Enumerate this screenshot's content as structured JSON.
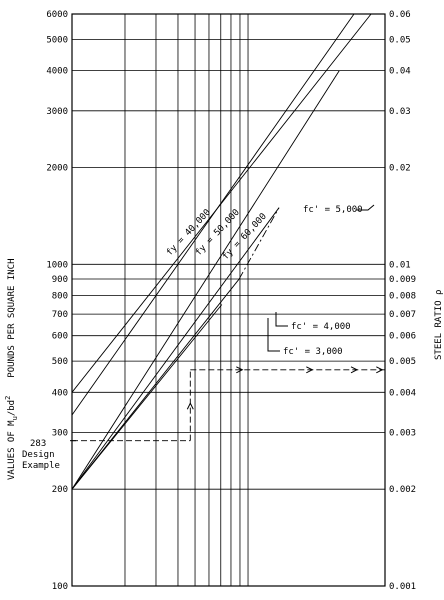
{
  "chart_data": {
    "type": "line",
    "title": "",
    "left_axis": {
      "label_prefix": "VALUES OF M",
      "label_sub": "u",
      "label_mid": "/bd",
      "label_sup": "2",
      "label_units": "POUNDS PER SQUARE INCH",
      "scale": "log",
      "range": [
        100,
        6000
      ],
      "ticks": [
        {
          "value": 100,
          "label": "100"
        },
        {
          "value": 200,
          "label": "200"
        },
        {
          "value": 300,
          "label": "300"
        },
        {
          "value": 400,
          "label": "400"
        },
        {
          "value": 500,
          "label": "500"
        },
        {
          "value": 600,
          "label": "600"
        },
        {
          "value": 700,
          "label": "700"
        },
        {
          "value": 800,
          "label": "800"
        },
        {
          "value": 900,
          "label": "900"
        },
        {
          "value": 1000,
          "label": "1000"
        },
        {
          "value": 2000,
          "label": "2000"
        },
        {
          "value": 3000,
          "label": "3000"
        },
        {
          "value": 4000,
          "label": "4000"
        },
        {
          "value": 5000,
          "label": "5000"
        },
        {
          "value": 6000,
          "label": "6000"
        }
      ]
    },
    "right_axis": {
      "label": "STEEL RATIO ρ",
      "scale": "log",
      "range": [
        0.001,
        0.06
      ],
      "ticks": [
        {
          "value": 0.001,
          "label": "0.001"
        },
        {
          "value": 0.002,
          "label": "0.002"
        },
        {
          "value": 0.003,
          "label": "0.003"
        },
        {
          "value": 0.004,
          "label": "0.004"
        },
        {
          "value": 0.005,
          "label": "0.005"
        },
        {
          "value": 0.006,
          "label": "0.006"
        },
        {
          "value": 0.007,
          "label": "0.007"
        },
        {
          "value": 0.008,
          "label": "0.008"
        },
        {
          "value": 0.009,
          "label": "0.009"
        },
        {
          "value": 0.01,
          "label": "0.01"
        },
        {
          "value": 0.02,
          "label": "0.02"
        },
        {
          "value": 0.03,
          "label": "0.03"
        },
        {
          "value": 0.04,
          "label": "0.04"
        },
        {
          "value": 0.05,
          "label": "0.05"
        },
        {
          "value": 0.06,
          "label": "0.06"
        }
      ]
    },
    "grid": true,
    "series": [
      {
        "name": "fy = 40,000",
        "style": "solid",
        "rho": [
          0.001,
          0.05
        ],
        "mu": [
          400,
          6000
        ]
      },
      {
        "name": "fy = 50,000",
        "style": "solid",
        "rho": [
          0.001,
          0.04
        ],
        "mu": [
          340,
          6000
        ]
      },
      {
        "name": "fy = 60,000",
        "style": "solid",
        "rho": [
          0.001,
          0.033
        ],
        "mu": [
          200,
          4000
        ]
      },
      {
        "name": "fc' = 5,000",
        "style": "solid",
        "rho": [
          0.001,
          0.015
        ],
        "mu": [
          200,
          1500
        ]
      },
      {
        "name": "fc' = 4,000",
        "style": "solid",
        "rho": [
          0.001,
          0.0089
        ],
        "mu": [
          200,
          900
        ]
      },
      {
        "name": "fc' = 3,000",
        "style": "solid",
        "rho": [
          0.001,
          0.0071
        ],
        "mu": [
          200,
          750
        ]
      },
      {
        "name": "fc' = 5,000 (dash-dot)",
        "style": "dashdot",
        "rho": [
          0.0089,
          0.015
        ],
        "mu": [
          900,
          1500
        ]
      }
    ],
    "design_example": {
      "label_lines": [
        "283",
        "Design",
        "Example"
      ],
      "mu": 283,
      "rho": 0.0047
    },
    "annotations": [
      {
        "text": "fy = 40,000"
      },
      {
        "text": "fy = 50,000"
      },
      {
        "text": "fy = 60,000"
      },
      {
        "text": "fc' = 5,000"
      },
      {
        "text": "fc' = 4,000"
      },
      {
        "text": "fc' = 3,000"
      }
    ]
  }
}
